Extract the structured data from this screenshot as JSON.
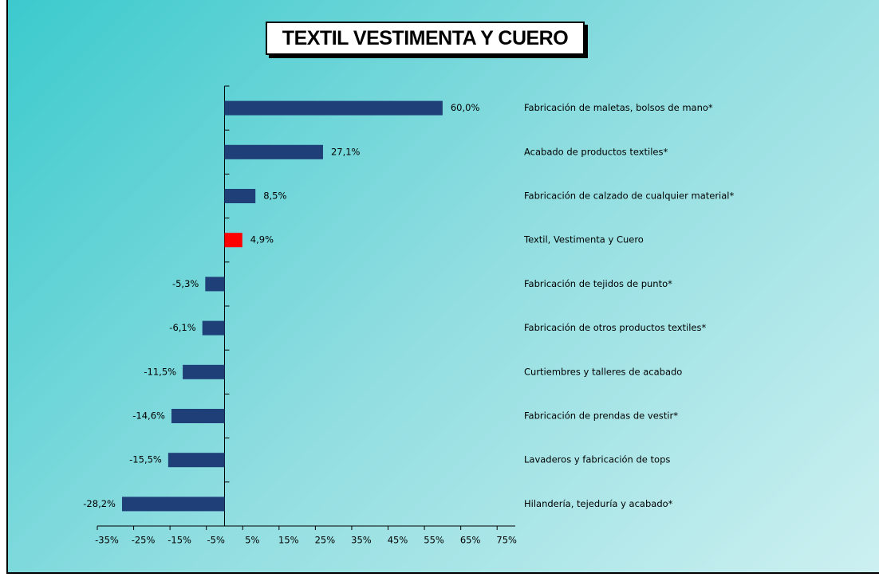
{
  "chart_data": {
    "type": "bar",
    "orientation": "horizontal",
    "title": "TEXTIL VESTIMENTA Y CUERO",
    "categories": [
      "Fabricación de maletas, bolsos de mano*",
      "Acabado de productos textiles*",
      "Fabricación de calzado de cualquier material*",
      "Textil, Vestimenta y Cuero",
      "Fabricación de tejidos de punto*",
      "Fabricación de otros productos textiles*",
      "Curtiembres y talleres de acabado",
      "Fabricación de prendas de vestir*",
      "Lavaderos y fabricación de tops",
      "Hilandería, tejeduría y acabado*"
    ],
    "values": [
      60.0,
      27.1,
      8.5,
      4.9,
      -5.3,
      -6.1,
      -11.5,
      -14.6,
      -15.5,
      -28.2
    ],
    "value_labels": [
      "60,0%",
      "27,1%",
      "8,5%",
      "4,9%",
      "-5,3%",
      "-6,1%",
      "-11,5%",
      "-14,6%",
      "-15,5%",
      "-28,2%"
    ],
    "colors": [
      "#1f3f78",
      "#1f3f78",
      "#1f3f78",
      "#ff0000",
      "#1f3f78",
      "#1f3f78",
      "#1f3f78",
      "#1f3f78",
      "#1f3f78",
      "#1f3f78"
    ],
    "xlim": [
      -35,
      80
    ],
    "xticks": [
      {
        "value": -35,
        "label": "-35%"
      },
      {
        "value": -25,
        "label": "-25%"
      },
      {
        "value": -15,
        "label": "-15%"
      },
      {
        "value": -5,
        "label": "-5%"
      },
      {
        "value": 5,
        "label": "5%"
      },
      {
        "value": 15,
        "label": "15%"
      },
      {
        "value": 25,
        "label": "25%"
      },
      {
        "value": 35,
        "label": "35%"
      },
      {
        "value": 45,
        "label": "45%"
      },
      {
        "value": 55,
        "label": "55%"
      },
      {
        "value": 65,
        "label": "65%"
      },
      {
        "value": 75,
        "label": "75%"
      }
    ],
    "grid": false
  }
}
